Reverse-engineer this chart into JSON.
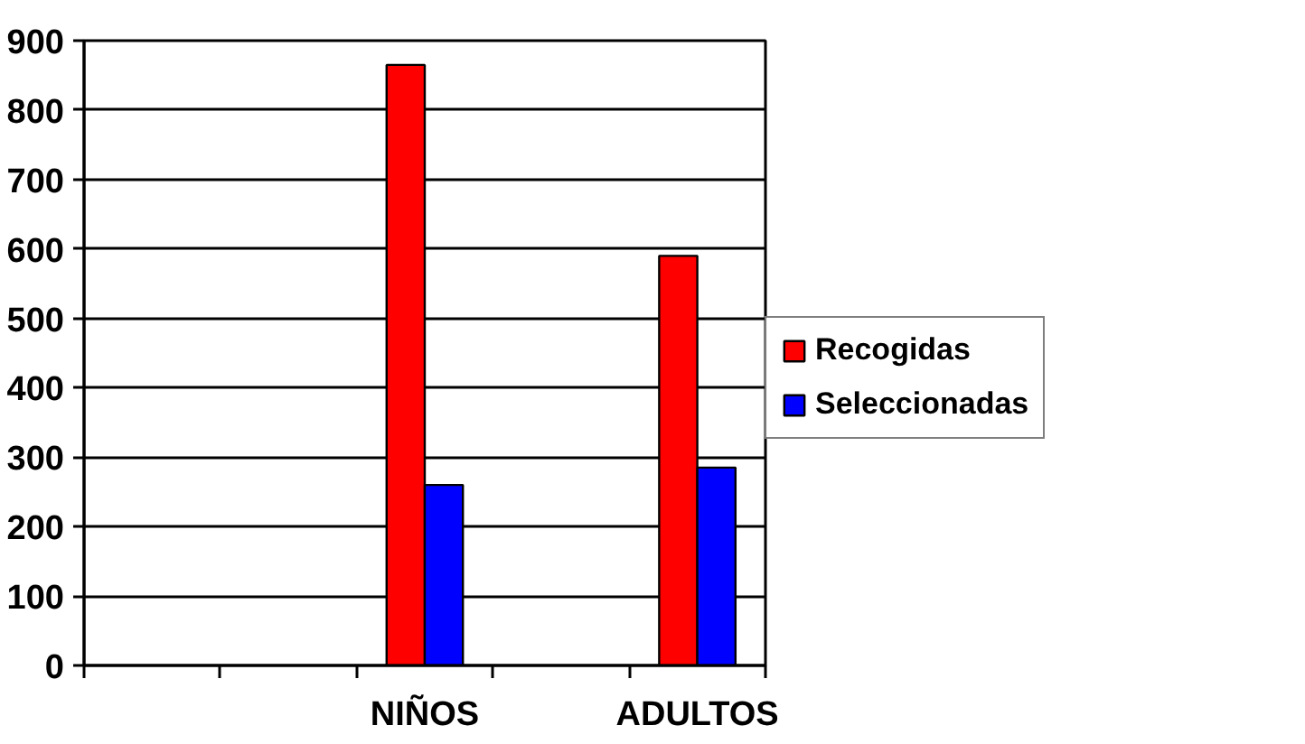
{
  "chart_data": {
    "type": "bar",
    "categories": [
      null,
      null,
      "NIÑOS",
      null,
      "ADULTOS"
    ],
    "series": [
      {
        "name": "Recogidas",
        "color": "#ff0000",
        "values": [
          null,
          null,
          865,
          null,
          590
        ]
      },
      {
        "name": "Seleccionadas",
        "color": "#0000ff",
        "values": [
          null,
          null,
          260,
          null,
          285
        ]
      }
    ],
    "ylim": [
      0,
      900
    ],
    "yticks": [
      0,
      100,
      200,
      300,
      400,
      500,
      600,
      700,
      800,
      900
    ],
    "grid": "y",
    "legend": "right"
  }
}
